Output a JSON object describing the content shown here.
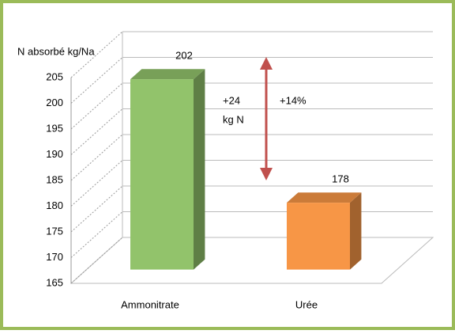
{
  "chart_data": {
    "type": "bar3d",
    "ylabel": "N absorbé kg/Na",
    "categories": [
      "Ammonitrate",
      "Urée"
    ],
    "values": [
      202,
      178
    ],
    "colors": [
      "#92c36b",
      "#f79646"
    ],
    "ylim": [
      165,
      205
    ],
    "yticks": [
      165,
      170,
      175,
      180,
      185,
      190,
      195,
      200,
      205
    ],
    "grid": true,
    "annotations": [
      "+24",
      "kg N",
      "+14%"
    ]
  }
}
